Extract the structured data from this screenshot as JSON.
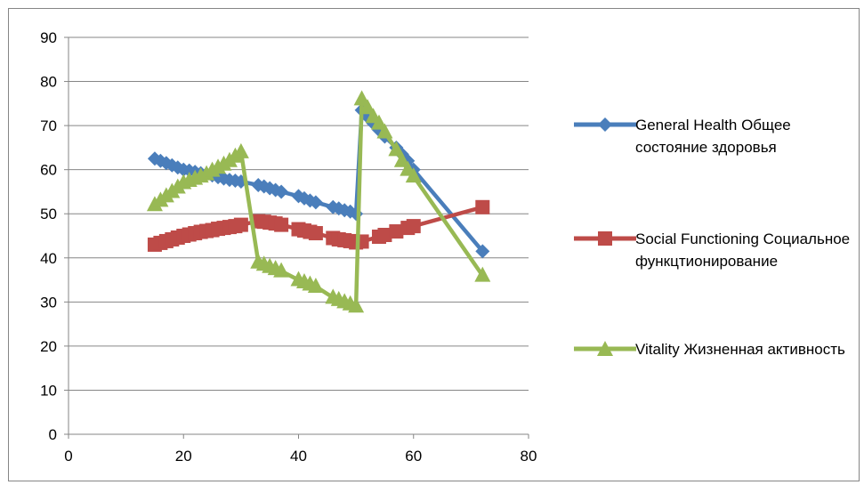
{
  "chart_data": {
    "type": "line",
    "title": "",
    "xlabel": "",
    "ylabel": "",
    "xlim": [
      0,
      80
    ],
    "ylim": [
      0,
      90
    ],
    "x_ticks": [
      "0",
      "20",
      "40",
      "60",
      "80"
    ],
    "y_ticks": [
      "0",
      "10",
      "20",
      "30",
      "40",
      "50",
      "60",
      "70",
      "80",
      "90"
    ],
    "grid": "horizontal",
    "legend_position": "right",
    "series": [
      {
        "name": "General Health  Общее состояние здоровья",
        "color": "#4a7ebb",
        "marker": "diamond",
        "points": [
          [
            15,
            62.5
          ],
          [
            16,
            62
          ],
          [
            17,
            61.5
          ],
          [
            18,
            61
          ],
          [
            19,
            60.5
          ],
          [
            20,
            60
          ],
          [
            21,
            59.8
          ],
          [
            22,
            59.5
          ],
          [
            23,
            59.2
          ],
          [
            24,
            59
          ],
          [
            25,
            58.7
          ],
          [
            26,
            58.3
          ],
          [
            27,
            58
          ],
          [
            28,
            57.7
          ],
          [
            29,
            57.5
          ],
          [
            30,
            57.3
          ],
          [
            33,
            56.5
          ],
          [
            34,
            56.2
          ],
          [
            35,
            55.8
          ],
          [
            36,
            55.4
          ],
          [
            37,
            55
          ],
          [
            40,
            54
          ],
          [
            41,
            53.5
          ],
          [
            42,
            53
          ],
          [
            43,
            52.6
          ],
          [
            46,
            51.5
          ],
          [
            47,
            51.2
          ],
          [
            48,
            50.8
          ],
          [
            49,
            50.5
          ],
          [
            50,
            50
          ],
          [
            51,
            73.5
          ],
          [
            52,
            72
          ],
          [
            53,
            70.5
          ],
          [
            54,
            69
          ],
          [
            55,
            67.5
          ],
          [
            57,
            65
          ],
          [
            58,
            63.5
          ],
          [
            59,
            62
          ],
          [
            60,
            60
          ],
          [
            72,
            41.5
          ]
        ]
      },
      {
        "name": "Social Functioning  Социальное функцтионирование",
        "color": "#be4b48",
        "marker": "square",
        "points": [
          [
            15,
            43
          ],
          [
            16,
            43.4
          ],
          [
            17,
            43.8
          ],
          [
            18,
            44.2
          ],
          [
            19,
            44.6
          ],
          [
            20,
            45
          ],
          [
            21,
            45.3
          ],
          [
            22,
            45.6
          ],
          [
            23,
            45.9
          ],
          [
            24,
            46.1
          ],
          [
            25,
            46.3
          ],
          [
            26,
            46.6
          ],
          [
            27,
            46.8
          ],
          [
            28,
            47
          ],
          [
            29,
            47.2
          ],
          [
            30,
            47.5
          ],
          [
            33,
            48.3
          ],
          [
            34,
            48.2
          ],
          [
            35,
            48
          ],
          [
            36,
            47.8
          ],
          [
            37,
            47.5
          ],
          [
            40,
            46.5
          ],
          [
            41,
            46.2
          ],
          [
            42,
            45.9
          ],
          [
            43,
            45.6
          ],
          [
            46,
            44.5
          ],
          [
            47,
            44.2
          ],
          [
            48,
            44
          ],
          [
            49,
            43.8
          ],
          [
            50,
            43.5
          ],
          [
            51,
            43.7
          ],
          [
            54,
            44.8
          ],
          [
            55,
            45.2
          ],
          [
            57,
            46
          ],
          [
            59,
            46.8
          ],
          [
            60,
            47.2
          ],
          [
            72,
            51.5
          ]
        ]
      },
      {
        "name": "Vitality  Жизненная активность",
        "color": "#98b954",
        "marker": "triangle",
        "points": [
          [
            15,
            52
          ],
          [
            16,
            53
          ],
          [
            17,
            54
          ],
          [
            18,
            55
          ],
          [
            19,
            56
          ],
          [
            20,
            57
          ],
          [
            21,
            57.5
          ],
          [
            22,
            58
          ],
          [
            23,
            58.5
          ],
          [
            24,
            59
          ],
          [
            25,
            59.8
          ],
          [
            26,
            60.5
          ],
          [
            27,
            61.2
          ],
          [
            28,
            62
          ],
          [
            29,
            63
          ],
          [
            30,
            64
          ],
          [
            33,
            39
          ],
          [
            34,
            38.5
          ],
          [
            35,
            38
          ],
          [
            36,
            37.5
          ],
          [
            37,
            37
          ],
          [
            40,
            35
          ],
          [
            41,
            34.5
          ],
          [
            42,
            34
          ],
          [
            43,
            33.5
          ],
          [
            46,
            31
          ],
          [
            47,
            30.5
          ],
          [
            48,
            30
          ],
          [
            49,
            29.5
          ],
          [
            50,
            29
          ],
          [
            51,
            76
          ],
          [
            52,
            74
          ],
          [
            53,
            72
          ],
          [
            54,
            70.5
          ],
          [
            55,
            68.5
          ],
          [
            57,
            64.5
          ],
          [
            58,
            62
          ],
          [
            59,
            60
          ],
          [
            60,
            58.5
          ],
          [
            72,
            36
          ]
        ]
      }
    ]
  }
}
